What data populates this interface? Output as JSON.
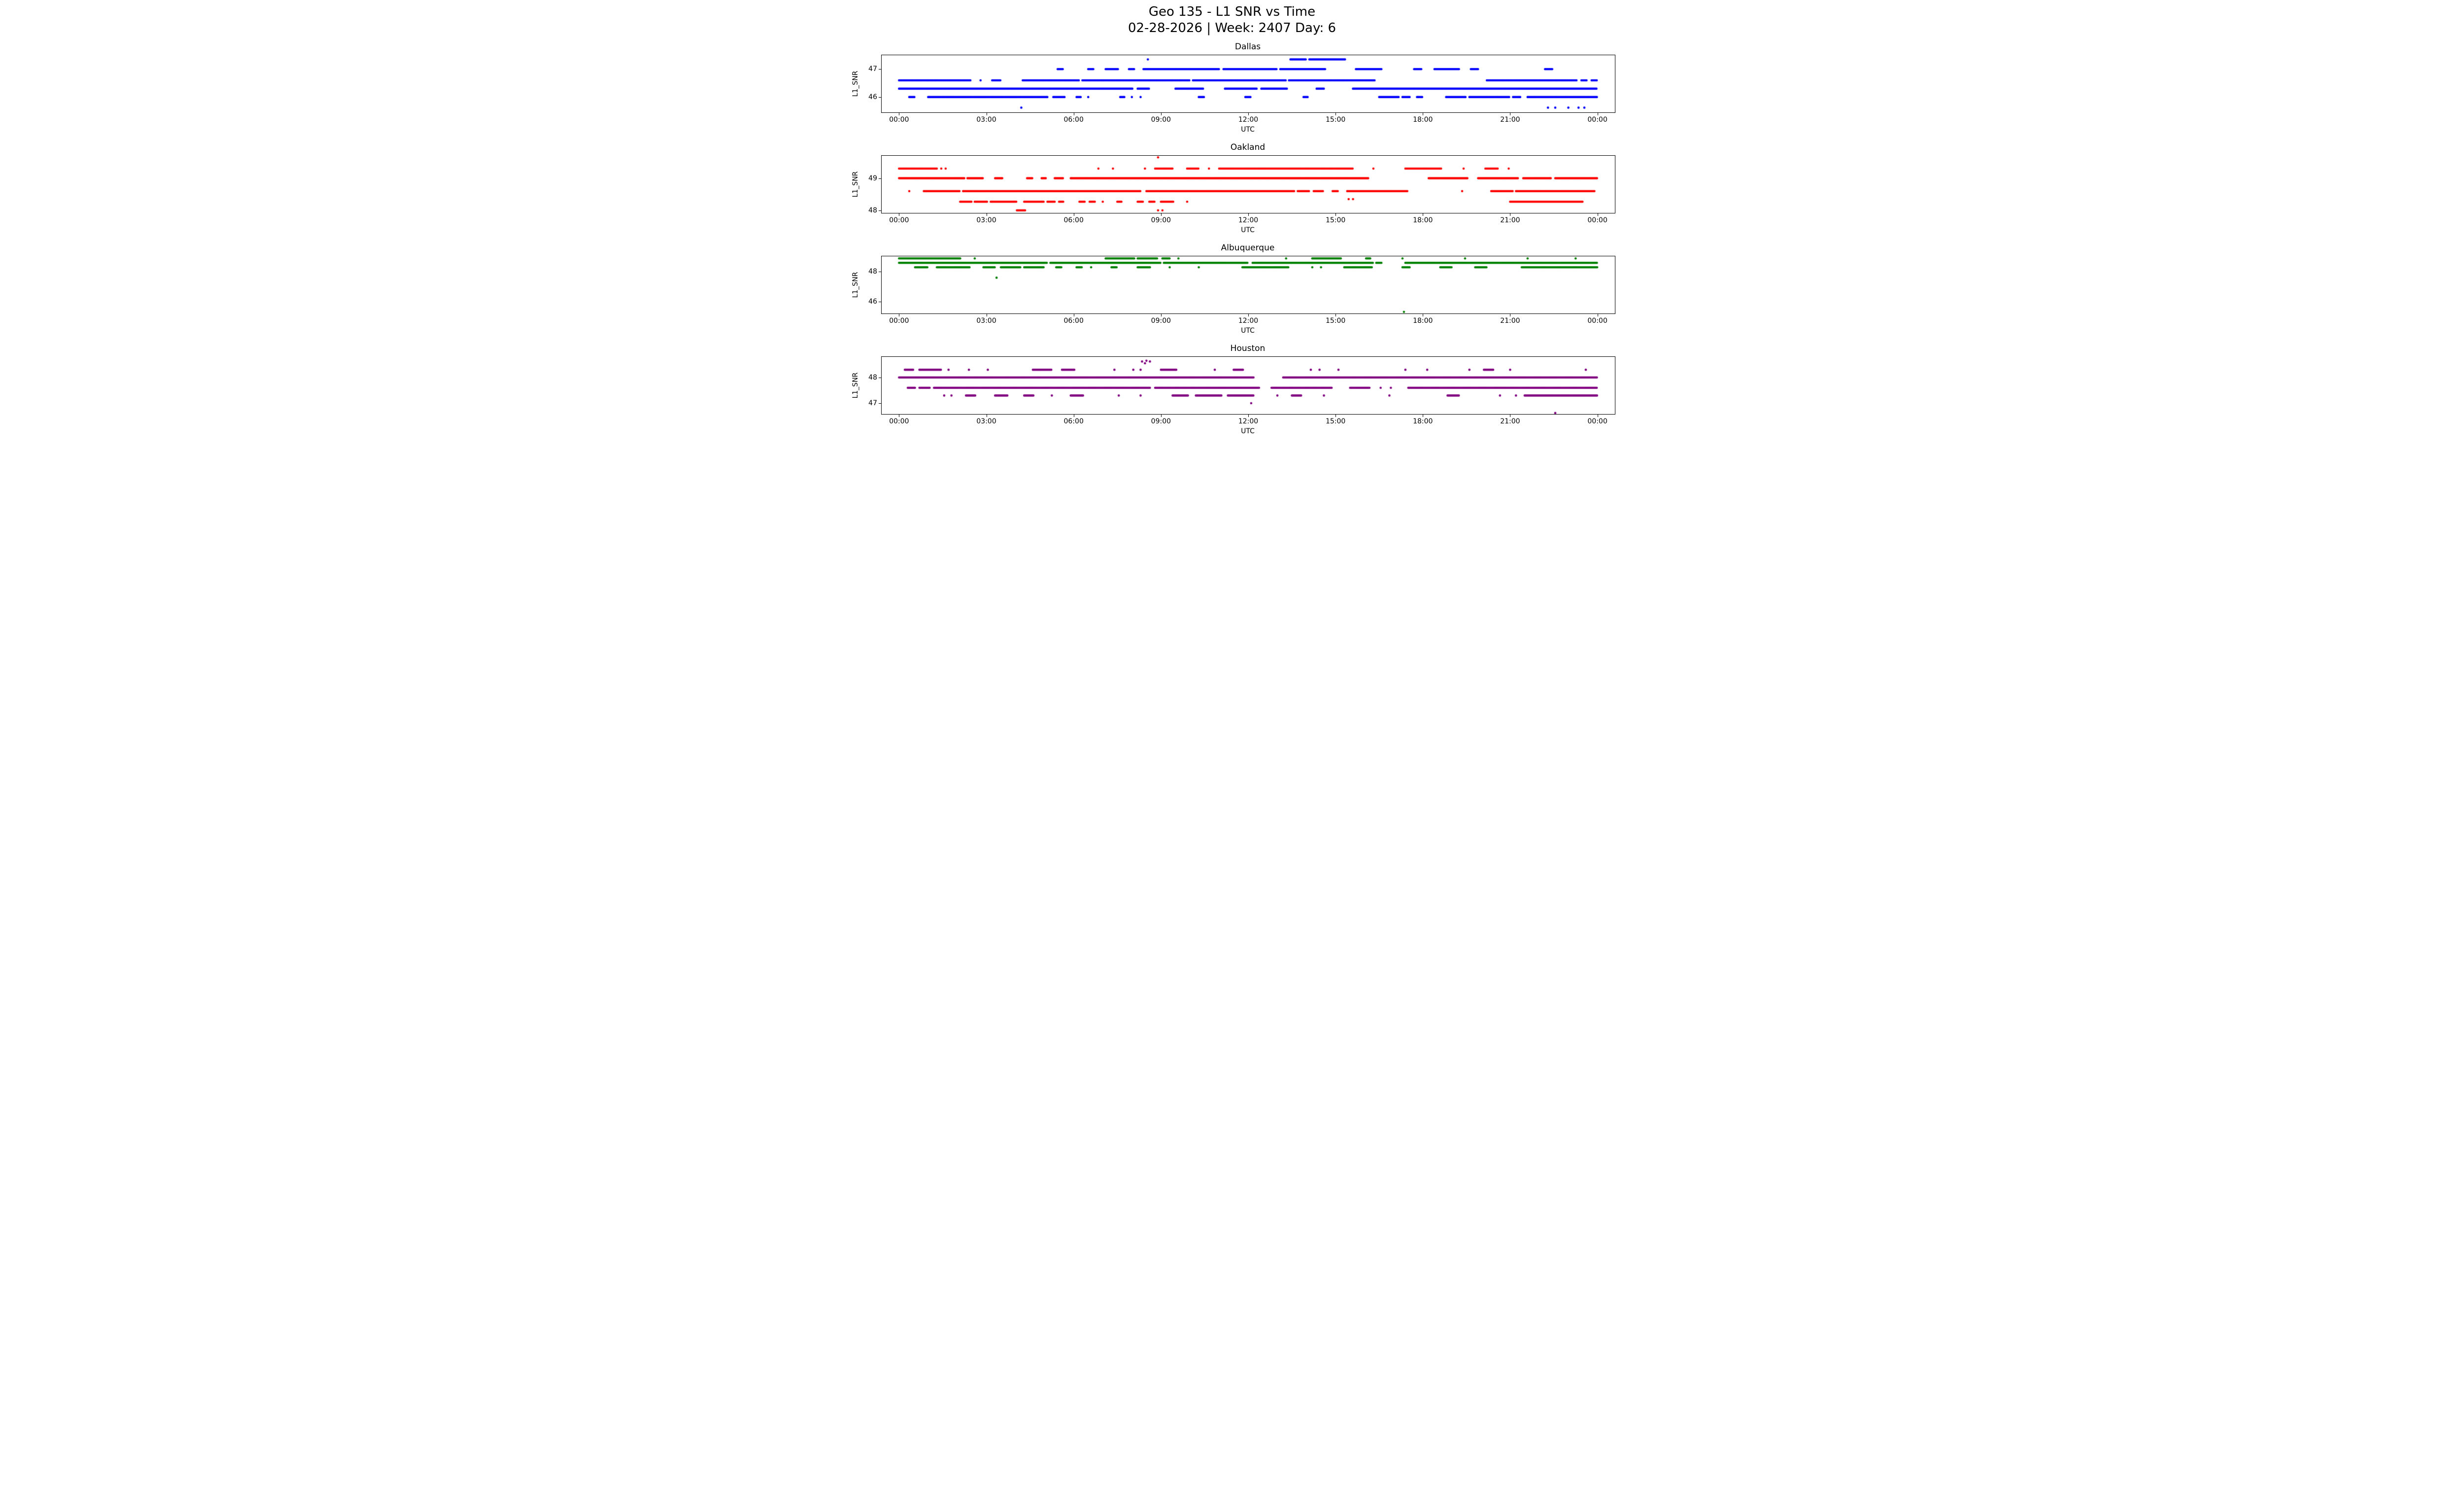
{
  "figure": {
    "title_line1": "Geo 135 - L1 SNR vs Time",
    "title_line2": "02-28-2026 | Week: 2407 Day: 6"
  },
  "chart_data": [
    {
      "type": "scatter",
      "title": "Dallas",
      "color": "#0000ff",
      "xlabel": "UTC",
      "ylabel": "L1_SNR",
      "xlim": [
        -0.6,
        24.6
      ],
      "ylim": [
        45.45,
        47.5
      ],
      "xtick_hours": [
        0,
        3,
        6,
        9,
        12,
        15,
        18,
        21,
        24
      ],
      "xtick_labels": [
        "00:00",
        "03:00",
        "06:00",
        "09:00",
        "12:00",
        "15:00",
        "18:00",
        "21:00",
        "00:00"
      ],
      "yticks": [
        46,
        47
      ],
      "grid": false,
      "legend": "none",
      "marker_size": 2.3,
      "sample_step": 0.035,
      "bands": [
        {
          "y": 47.35,
          "segments": [
            [
              13.45,
              14.0
            ],
            [
              14.1,
              15.35
            ]
          ]
        },
        {
          "y": 47.0,
          "segments": [
            [
              5.45,
              5.65
            ],
            [
              6.5,
              6.7
            ],
            [
              7.1,
              7.55
            ],
            [
              7.9,
              8.1
            ],
            [
              8.4,
              11.0
            ],
            [
              11.15,
              13.0
            ],
            [
              13.1,
              14.65
            ],
            [
              15.7,
              16.6
            ],
            [
              17.7,
              17.95
            ],
            [
              18.4,
              19.25
            ],
            [
              19.65,
              19.9
            ],
            [
              22.2,
              22.45
            ]
          ]
        },
        {
          "y": 46.6,
          "segments": [
            [
              0.0,
              2.45
            ],
            [
              3.2,
              3.5
            ],
            [
              4.25,
              6.2
            ],
            [
              6.3,
              10.0
            ],
            [
              10.1,
              13.3
            ],
            [
              13.4,
              16.35
            ],
            [
              20.2,
              23.3
            ],
            [
              23.45,
              23.65
            ],
            [
              23.8,
              24.0
            ]
          ]
        },
        {
          "y": 46.3,
          "segments": [
            [
              0.0,
              8.05
            ],
            [
              8.2,
              8.6
            ],
            [
              9.5,
              10.45
            ],
            [
              11.2,
              12.3
            ],
            [
              12.45,
              13.35
            ],
            [
              14.35,
              14.6
            ],
            [
              15.6,
              24.0
            ]
          ]
        },
        {
          "y": 46.0,
          "segments": [
            [
              0.35,
              0.55
            ],
            [
              1.0,
              5.1
            ],
            [
              5.3,
              5.7
            ],
            [
              6.1,
              6.25
            ],
            [
              7.6,
              7.75
            ],
            [
              10.3,
              10.5
            ],
            [
              11.9,
              12.1
            ],
            [
              13.9,
              14.05
            ],
            [
              16.5,
              17.2
            ],
            [
              17.3,
              17.55
            ],
            [
              17.8,
              18.0
            ],
            [
              18.8,
              19.5
            ],
            [
              19.6,
              21.0
            ],
            [
              21.1,
              21.35
            ],
            [
              21.6,
              24.0
            ]
          ]
        }
      ],
      "points": [
        [
          8.55,
          47.35
        ],
        [
          2.8,
          46.6
        ],
        [
          6.5,
          46.0
        ],
        [
          8.0,
          46.0
        ],
        [
          8.3,
          46.0
        ],
        [
          4.2,
          45.62
        ],
        [
          22.3,
          45.62
        ],
        [
          22.55,
          45.62
        ],
        [
          23.0,
          45.62
        ],
        [
          23.35,
          45.62
        ],
        [
          23.55,
          45.62
        ]
      ]
    },
    {
      "type": "scatter",
      "title": "Oakland",
      "color": "#ff0000",
      "xlabel": "UTC",
      "ylabel": "L1_SNR",
      "xlim": [
        -0.6,
        24.6
      ],
      "ylim": [
        47.92,
        49.7
      ],
      "xtick_hours": [
        0,
        3,
        6,
        9,
        12,
        15,
        18,
        21,
        24
      ],
      "xtick_labels": [
        "00:00",
        "03:00",
        "06:00",
        "09:00",
        "12:00",
        "15:00",
        "18:00",
        "21:00",
        "00:00"
      ],
      "yticks": [
        48,
        49
      ],
      "grid": false,
      "legend": "none",
      "marker_size": 2.3,
      "sample_step": 0.035,
      "bands": [
        {
          "y": 49.3,
          "segments": [
            [
              0.0,
              1.3
            ],
            [
              8.8,
              9.4
            ],
            [
              9.9,
              10.3
            ],
            [
              11.0,
              15.6
            ],
            [
              17.4,
              18.65
            ],
            [
              20.15,
              20.6
            ]
          ]
        },
        {
          "y": 49.0,
          "segments": [
            [
              0.0,
              2.25
            ],
            [
              2.35,
              2.9
            ],
            [
              3.3,
              3.55
            ],
            [
              4.4,
              4.6
            ],
            [
              4.9,
              5.05
            ],
            [
              5.35,
              5.65
            ],
            [
              5.9,
              16.15
            ],
            [
              18.2,
              19.55
            ],
            [
              19.9,
              21.3
            ],
            [
              21.45,
              22.4
            ],
            [
              22.55,
              24.0
            ]
          ]
        },
        {
          "y": 48.6,
          "segments": [
            [
              0.85,
              2.1
            ],
            [
              2.2,
              8.3
            ],
            [
              8.5,
              13.6
            ],
            [
              13.7,
              14.1
            ],
            [
              14.25,
              14.6
            ],
            [
              14.9,
              15.1
            ],
            [
              15.4,
              17.5
            ],
            [
              20.35,
              21.1
            ],
            [
              21.2,
              23.9
            ]
          ]
        },
        {
          "y": 48.27,
          "segments": [
            [
              2.1,
              2.5
            ],
            [
              2.6,
              3.05
            ],
            [
              3.15,
              4.05
            ],
            [
              4.3,
              5.0
            ],
            [
              5.1,
              5.35
            ],
            [
              5.5,
              5.65
            ],
            [
              6.2,
              6.4
            ],
            [
              6.55,
              6.75
            ],
            [
              7.5,
              7.65
            ],
            [
              8.2,
              8.4
            ],
            [
              8.6,
              8.8
            ],
            [
              9.0,
              9.45
            ],
            [
              21.0,
              23.5
            ]
          ]
        },
        {
          "y": 48.0,
          "segments": [
            [
              4.05,
              4.35
            ]
          ]
        }
      ],
      "points": [
        [
          8.9,
          49.65
        ],
        [
          1.45,
          49.3
        ],
        [
          1.6,
          49.3
        ],
        [
          6.85,
          49.3
        ],
        [
          7.35,
          49.3
        ],
        [
          8.45,
          49.3
        ],
        [
          10.65,
          49.3
        ],
        [
          16.3,
          49.3
        ],
        [
          19.4,
          49.3
        ],
        [
          20.95,
          49.3
        ],
        [
          0.35,
          48.6
        ],
        [
          19.35,
          48.6
        ],
        [
          7.0,
          48.27
        ],
        [
          9.9,
          48.27
        ],
        [
          15.45,
          48.35
        ],
        [
          15.6,
          48.35
        ],
        [
          8.9,
          48.0
        ],
        [
          9.05,
          48.0
        ]
      ]
    },
    {
      "type": "scatter",
      "title": "Albuquerque",
      "color": "#008000",
      "xlabel": "UTC",
      "ylabel": "L1_SNR",
      "xlim": [
        -0.6,
        24.6
      ],
      "ylim": [
        45.19,
        49.04
      ],
      "xtick_hours": [
        0,
        3,
        6,
        9,
        12,
        15,
        18,
        21,
        24
      ],
      "xtick_labels": [
        "00:00",
        "03:00",
        "06:00",
        "09:00",
        "12:00",
        "15:00",
        "18:00",
        "21:00",
        "00:00"
      ],
      "yticks": [
        46,
        48
      ],
      "grid": false,
      "legend": "none",
      "marker_size": 2.3,
      "sample_step": 0.035,
      "bands": [
        {
          "y": 48.9,
          "segments": [
            [
              0.0,
              2.1
            ],
            [
              7.1,
              8.1
            ],
            [
              8.2,
              8.9
            ],
            [
              9.05,
              9.3
            ],
            [
              14.2,
              15.2
            ],
            [
              16.05,
              16.2
            ]
          ]
        },
        {
          "y": 48.6,
          "segments": [
            [
              0.0,
              5.1
            ],
            [
              5.2,
              9.0
            ],
            [
              9.1,
              12.0
            ],
            [
              12.15,
              16.3
            ],
            [
              16.4,
              16.6
            ],
            [
              17.4,
              24.0
            ]
          ]
        },
        {
          "y": 48.3,
          "segments": [
            [
              0.55,
              1.0
            ],
            [
              1.3,
              2.45
            ],
            [
              2.9,
              3.3
            ],
            [
              3.5,
              4.2
            ],
            [
              4.3,
              5.0
            ],
            [
              5.4,
              5.6
            ],
            [
              6.1,
              6.3
            ],
            [
              7.3,
              7.5
            ],
            [
              8.2,
              8.65
            ],
            [
              11.8,
              13.4
            ],
            [
              15.3,
              16.25
            ],
            [
              17.3,
              17.55
            ],
            [
              18.6,
              19.0
            ],
            [
              19.8,
              20.2
            ],
            [
              21.4,
              24.0
            ]
          ]
        }
      ],
      "points": [
        [
          2.6,
          48.9
        ],
        [
          9.6,
          48.9
        ],
        [
          13.3,
          48.9
        ],
        [
          17.3,
          48.9
        ],
        [
          19.45,
          48.9
        ],
        [
          21.6,
          48.9
        ],
        [
          23.25,
          48.9
        ],
        [
          6.6,
          48.3
        ],
        [
          9.3,
          48.3
        ],
        [
          10.3,
          48.3
        ],
        [
          14.2,
          48.3
        ],
        [
          14.5,
          48.3
        ],
        [
          3.35,
          47.6
        ],
        [
          17.35,
          45.3
        ]
      ]
    },
    {
      "type": "scatter",
      "title": "Houston",
      "color": "#800080",
      "xlabel": "UTC",
      "ylabel": "L1_SNR",
      "xlim": [
        -0.6,
        24.6
      ],
      "ylim": [
        46.58,
        48.8
      ],
      "xtick_hours": [
        0,
        3,
        6,
        9,
        12,
        15,
        18,
        21,
        24
      ],
      "xtick_labels": [
        "00:00",
        "03:00",
        "06:00",
        "09:00",
        "12:00",
        "15:00",
        "18:00",
        "21:00",
        "00:00"
      ],
      "yticks": [
        47,
        48
      ],
      "grid": false,
      "legend": "none",
      "marker_size": 2.3,
      "sample_step": 0.035,
      "bands": [
        {
          "y": 48.3,
          "segments": [
            [
              0.2,
              0.5
            ],
            [
              0.7,
              1.45
            ],
            [
              4.6,
              5.25
            ],
            [
              5.6,
              6.05
            ],
            [
              9.0,
              9.55
            ],
            [
              11.5,
              11.85
            ],
            [
              20.1,
              20.45
            ]
          ]
        },
        {
          "y": 48.0,
          "segments": [
            [
              0.0,
              12.2
            ],
            [
              13.2,
              24.0
            ]
          ]
        },
        {
          "y": 47.6,
          "segments": [
            [
              0.3,
              0.55
            ],
            [
              0.7,
              1.05
            ],
            [
              1.2,
              8.65
            ],
            [
              8.8,
              12.4
            ],
            [
              12.8,
              14.9
            ],
            [
              15.5,
              16.2
            ],
            [
              17.5,
              24.0
            ]
          ]
        },
        {
          "y": 47.3,
          "segments": [
            [
              2.3,
              2.65
            ],
            [
              3.3,
              3.75
            ],
            [
              4.3,
              4.65
            ],
            [
              5.9,
              6.35
            ],
            [
              9.4,
              9.95
            ],
            [
              10.2,
              11.1
            ],
            [
              11.3,
              12.2
            ],
            [
              13.5,
              13.85
            ],
            [
              18.85,
              19.25
            ],
            [
              21.5,
              24.0
            ]
          ]
        }
      ],
      "points": [
        [
          8.35,
          48.62
        ],
        [
          8.5,
          48.65
        ],
        [
          8.62,
          48.62
        ],
        [
          8.45,
          48.55
        ],
        [
          1.7,
          48.3
        ],
        [
          2.4,
          48.3
        ],
        [
          3.05,
          48.3
        ],
        [
          7.4,
          48.3
        ],
        [
          8.05,
          48.3
        ],
        [
          8.3,
          48.3
        ],
        [
          10.85,
          48.3
        ],
        [
          14.15,
          48.3
        ],
        [
          14.45,
          48.3
        ],
        [
          15.1,
          48.3
        ],
        [
          17.4,
          48.3
        ],
        [
          18.15,
          48.3
        ],
        [
          19.6,
          48.3
        ],
        [
          21.0,
          48.3
        ],
        [
          23.6,
          48.3
        ],
        [
          16.55,
          47.6
        ],
        [
          16.9,
          47.6
        ],
        [
          1.55,
          47.3
        ],
        [
          1.8,
          47.3
        ],
        [
          5.25,
          47.3
        ],
        [
          7.55,
          47.3
        ],
        [
          8.3,
          47.3
        ],
        [
          13.0,
          47.3
        ],
        [
          14.6,
          47.3
        ],
        [
          16.85,
          47.3
        ],
        [
          20.65,
          47.3
        ],
        [
          21.2,
          47.3
        ],
        [
          12.1,
          47.0
        ],
        [
          22.55,
          46.62
        ]
      ]
    }
  ]
}
